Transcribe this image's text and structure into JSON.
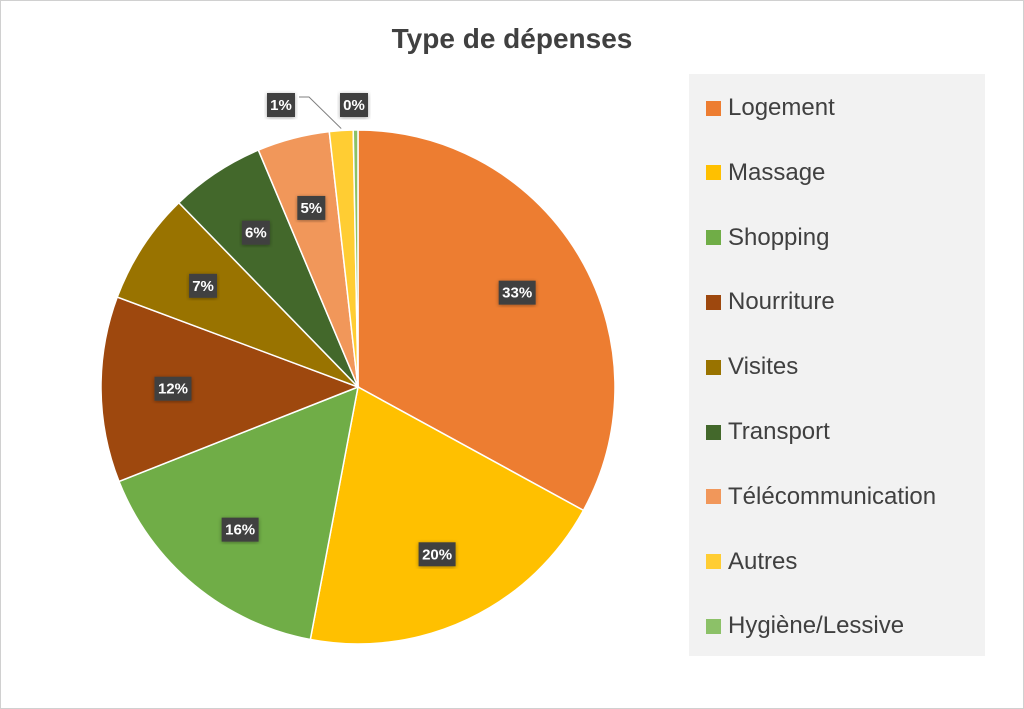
{
  "chart_data": {
    "type": "pie",
    "title": "Type de dépenses",
    "categories": [
      "Logement",
      "Massage",
      "Shopping",
      "Nourriture",
      "Visites",
      "Transport",
      "Télécommunication",
      "Autres",
      "Hygiène/Lessive"
    ],
    "values": [
      33.3,
      20.2,
      16.2,
      11.8,
      7.1,
      6.0,
      4.6,
      1.5,
      0.3
    ],
    "data_labels": [
      "33%",
      "20%",
      "16%",
      "12%",
      "7%",
      "6%",
      "5%",
      "1%",
      "0%"
    ],
    "colors": [
      "#ed7d31",
      "#ffc000",
      "#70ad47",
      "#9e480e",
      "#997300",
      "#43682b",
      "#f1975a",
      "#ffcd33",
      "#8cc168"
    ],
    "legend_position": "right",
    "start_angle_deg": 0,
    "direction": "clockwise"
  }
}
